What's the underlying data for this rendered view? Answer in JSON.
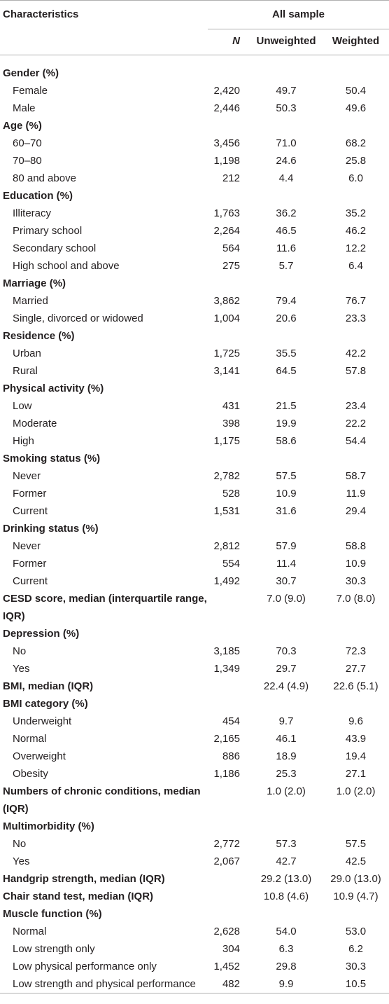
{
  "table": {
    "header": {
      "characteristics": "Characteristics",
      "group": "All sample",
      "columns": [
        "N",
        "Unweighted",
        "Weighted"
      ]
    },
    "rows": [
      {
        "label": "Gender (%)",
        "rows": [
          {
            "label": "Female",
            "cells": [
              "2,420",
              "49.7",
              "50.4"
            ]
          },
          {
            "label": "Male",
            "cells": [
              "2,446",
              "50.3",
              "49.6"
            ]
          }
        ]
      },
      {
        "label": "Age (%)",
        "rows": [
          {
            "label": "60–70",
            "cells": [
              "3,456",
              "71.0",
              "68.2"
            ]
          },
          {
            "label": "70–80",
            "cells": [
              "1,198",
              "24.6",
              "25.8"
            ]
          },
          {
            "label": "80 and above",
            "cells": [
              "212",
              "4.4",
              "6.0"
            ]
          }
        ]
      },
      {
        "label": "Education (%)",
        "rows": [
          {
            "label": "Illiteracy",
            "cells": [
              "1,763",
              "36.2",
              "35.2"
            ]
          },
          {
            "label": "Primary school",
            "cells": [
              "2,264",
              "46.5",
              "46.2"
            ]
          },
          {
            "label": "Secondary school",
            "cells": [
              "564",
              "11.6",
              "12.2"
            ]
          },
          {
            "label": "High school and above",
            "cells": [
              "275",
              "5.7",
              "6.4"
            ]
          }
        ]
      },
      {
        "label": "Marriage (%)",
        "rows": [
          {
            "label": "Married",
            "cells": [
              "3,862",
              "79.4",
              "76.7"
            ]
          },
          {
            "label": "Single, divorced or widowed",
            "cells": [
              "1,004",
              "20.6",
              "23.3"
            ]
          }
        ]
      },
      {
        "label": "Residence (%)",
        "rows": [
          {
            "label": "Urban",
            "cells": [
              "1,725",
              "35.5",
              "42.2"
            ]
          },
          {
            "label": "Rural",
            "cells": [
              "3,141",
              "64.5",
              "57.8"
            ]
          }
        ]
      },
      {
        "label": "Physical activity (%)",
        "rows": [
          {
            "label": "Low",
            "cells": [
              "431",
              "21.5",
              "23.4"
            ]
          },
          {
            "label": "Moderate",
            "cells": [
              "398",
              "19.9",
              "22.2"
            ]
          },
          {
            "label": "High",
            "cells": [
              "1,175",
              "58.6",
              "54.4"
            ]
          }
        ]
      },
      {
        "label": "Smoking status (%)",
        "rows": [
          {
            "label": "Never",
            "cells": [
              "2,782",
              "57.5",
              "58.7"
            ]
          },
          {
            "label": "Former",
            "cells": [
              "528",
              "10.9",
              "11.9"
            ]
          },
          {
            "label": "Current",
            "cells": [
              "1,531",
              "31.6",
              "29.4"
            ]
          }
        ]
      },
      {
        "label": "Drinking status (%)",
        "rows": [
          {
            "label": "Never",
            "cells": [
              "2,812",
              "57.9",
              "58.8"
            ]
          },
          {
            "label": "Former",
            "cells": [
              "554",
              "11.4",
              "10.9"
            ]
          },
          {
            "label": "Current",
            "cells": [
              "1,492",
              "30.7",
              "30.3"
            ]
          }
        ]
      },
      {
        "label": "CESD score, median (interquartile range, IQR)",
        "cells": [
          null,
          "7.0 (9.0)",
          "7.0 (8.0)"
        ]
      },
      {
        "label": "Depression (%)",
        "rows": [
          {
            "label": "No",
            "cells": [
              "3,185",
              "70.3",
              "72.3"
            ]
          },
          {
            "label": "Yes",
            "cells": [
              "1,349",
              "29.7",
              "27.7"
            ]
          }
        ]
      },
      {
        "label": "BMI, median (IQR)",
        "cells": [
          null,
          "22.4 (4.9)",
          "22.6 (5.1)"
        ]
      },
      {
        "label": "BMI category (%)",
        "rows": [
          {
            "label": "Underweight",
            "cells": [
              "454",
              "9.7",
              "9.6"
            ]
          },
          {
            "label": "Normal",
            "cells": [
              "2,165",
              "46.1",
              "43.9"
            ]
          },
          {
            "label": "Overweight",
            "cells": [
              "886",
              "18.9",
              "19.4"
            ]
          },
          {
            "label": "Obesity",
            "cells": [
              "1,186",
              "25.3",
              "27.1"
            ]
          }
        ]
      },
      {
        "label": "Numbers of chronic conditions, median (IQR)",
        "cells": [
          null,
          "1.0 (2.0)",
          "1.0 (2.0)"
        ]
      },
      {
        "label": "Multimorbidity (%)",
        "rows": [
          {
            "label": "No",
            "cells": [
              "2,772",
              "57.3",
              "57.5"
            ]
          },
          {
            "label": "Yes",
            "cells": [
              "2,067",
              "42.7",
              "42.5"
            ]
          }
        ]
      },
      {
        "label": "Handgrip strength, median (IQR)",
        "cells": [
          null,
          "29.2 (13.0)",
          "29.0 (13.0)"
        ]
      },
      {
        "label": "Chair stand test, median (IQR)",
        "cells": [
          null,
          "10.8 (4.6)",
          "10.9 (4.7)"
        ]
      },
      {
        "label": "Muscle function (%)",
        "rows": [
          {
            "label": "Normal",
            "cells": [
              "2,628",
              "54.0",
              "53.0"
            ]
          },
          {
            "label": "Low strength only",
            "cells": [
              "304",
              "6.3",
              "6.2"
            ]
          },
          {
            "label": "Low physical performance only",
            "cells": [
              "1,452",
              "29.8",
              "30.3"
            ]
          },
          {
            "label": "Low strength and physical performance",
            "cells": [
              "482",
              "9.9",
              "10.5"
            ]
          }
        ]
      }
    ]
  }
}
